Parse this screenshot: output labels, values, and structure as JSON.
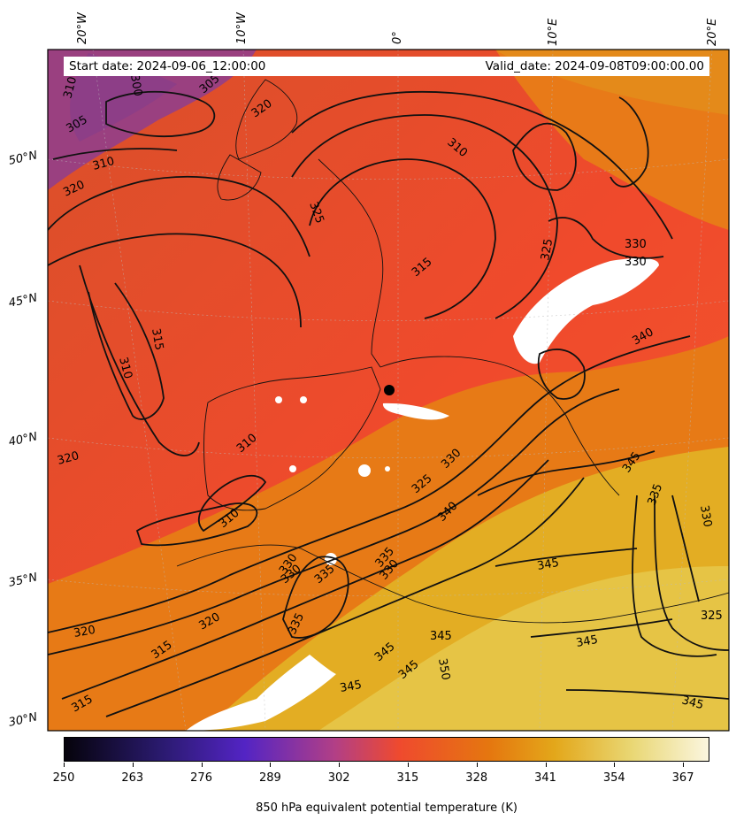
{
  "header": {
    "start_label": "Start date: 2024-09-06_12:00:00",
    "valid_label": "Valid_date: 2024-09-08T09:00:00.00"
  },
  "map": {
    "longitude_labels": [
      "20°W",
      "10°W",
      "0°",
      "10°E",
      "20°E"
    ],
    "latitude_labels": [
      "50°N",
      "45°N",
      "40°N",
      "35°N",
      "30°N"
    ],
    "contour_labels": [
      "310",
      "300",
      "305",
      "305",
      "320",
      "310",
      "320",
      "325",
      "310",
      "315",
      "325",
      "330",
      "330",
      "340",
      "315",
      "310",
      "320",
      "310",
      "310",
      "330",
      "325",
      "340",
      "345",
      "335",
      "330",
      "330",
      "335",
      "335",
      "330",
      "345",
      "345",
      "345",
      "350",
      "345",
      "345",
      "335",
      "330",
      "325",
      "320",
      "315",
      "320",
      "315",
      "345",
      "345"
    ],
    "colors": {
      "cold_band": "#8b3f8a",
      "mid": "#f24a2e",
      "warm": "#e07a12",
      "hot": "#e6c23a",
      "missing": "#ffffff"
    }
  },
  "colorbar": {
    "title": "850 hPa equivalent potential temperature (K)",
    "tick_labels": [
      "250",
      "263",
      "276",
      "289",
      "302",
      "315",
      "328",
      "341",
      "354",
      "367"
    ],
    "min": 250,
    "max": 372
  }
}
